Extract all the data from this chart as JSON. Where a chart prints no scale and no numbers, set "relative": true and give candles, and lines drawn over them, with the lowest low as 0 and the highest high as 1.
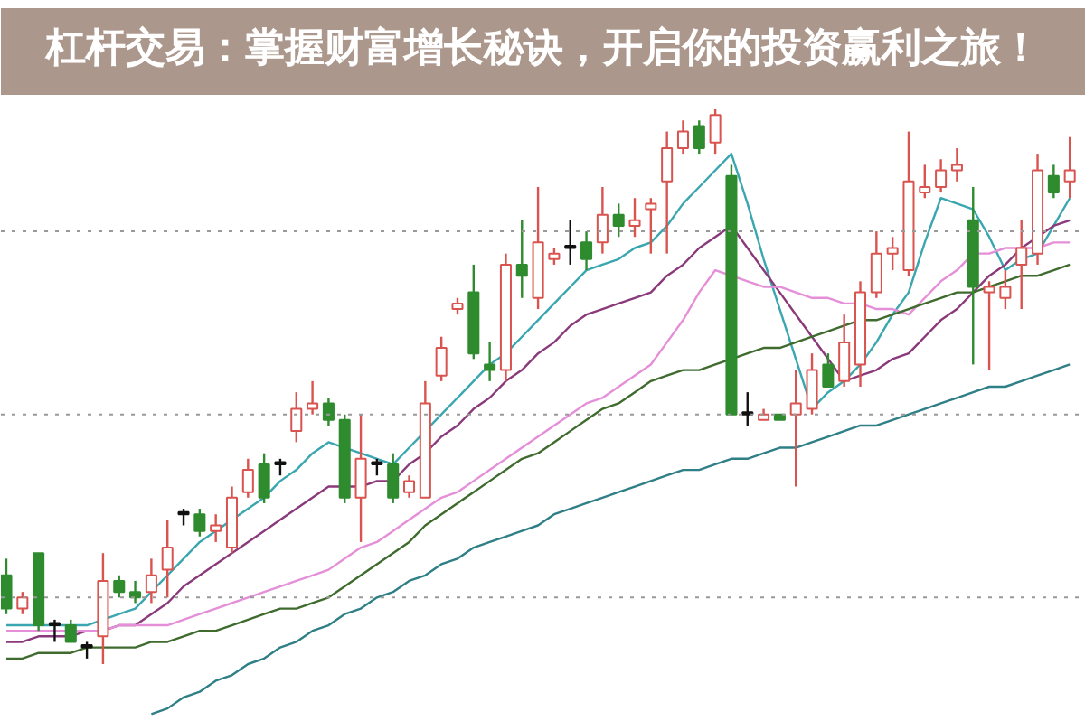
{
  "chart_data": {
    "type": "candlestick",
    "title": "杠杆交易：掌握财富增长秘诀，开启你的投资赢利之旅！",
    "relative": true,
    "categories": [
      null,
      null,
      null,
      null,
      null,
      null,
      null,
      null,
      null,
      null,
      null,
      null,
      null,
      null,
      null,
      null,
      null,
      null,
      null,
      null,
      null,
      null,
      null,
      null,
      null,
      null,
      null,
      null,
      null,
      null,
      null,
      null,
      null,
      null,
      null,
      null,
      null,
      null,
      null,
      null,
      null,
      null,
      null,
      null,
      null,
      null,
      null,
      null,
      null,
      null,
      null,
      null,
      null,
      null,
      null,
      null,
      null,
      null,
      null,
      null,
      null,
      null,
      null,
      null,
      null,
      null,
      null
    ],
    "ohlc": [
      [
        0.16,
        0.19,
        0.09,
        0.1
      ],
      [
        0.1,
        0.13,
        0.09,
        0.12
      ],
      [
        0.2,
        0.2,
        0.06,
        0.07
      ],
      [
        0.07,
        0.08,
        0.04,
        0.07
      ],
      [
        0.07,
        0.08,
        0.04,
        0.04
      ],
      [
        0.03,
        0.04,
        0.01,
        0.03
      ],
      [
        0.05,
        0.2,
        0,
        0.15
      ],
      [
        0.15,
        0.16,
        0.12,
        0.13
      ],
      [
        0.13,
        0.15,
        0.11,
        0.12
      ],
      [
        0.13,
        0.19,
        0.11,
        0.16
      ],
      [
        0.17,
        0.26,
        0.12,
        0.21
      ],
      [
        0.27,
        0.28,
        0.25,
        0.27
      ],
      [
        0.27,
        0.28,
        0.23,
        0.24
      ],
      [
        0.24,
        0.27,
        0.22,
        0.25
      ],
      [
        0.21,
        0.32,
        0.2,
        0.3
      ],
      [
        0.31,
        0.37,
        0.3,
        0.35
      ],
      [
        0.36,
        0.38,
        0.29,
        0.3
      ],
      [
        0.36,
        0.37,
        0.34,
        0.36
      ],
      [
        0.42,
        0.49,
        0.4,
        0.46
      ],
      [
        0.46,
        0.51,
        0.45,
        0.47
      ],
      [
        0.47,
        0.48,
        0.43,
        0.44
      ],
      [
        0.44,
        0.45,
        0.29,
        0.3
      ],
      [
        0.3,
        0.45,
        0.22,
        0.37
      ],
      [
        0.36,
        0.37,
        0.34,
        0.36
      ],
      [
        0.36,
        0.38,
        0.29,
        0.3
      ],
      [
        0.31,
        0.34,
        0.3,
        0.33
      ],
      [
        0.3,
        0.51,
        0.3,
        0.47
      ],
      [
        0.52,
        0.59,
        0.51,
        0.57
      ],
      [
        0.64,
        0.66,
        0.63,
        0.65
      ],
      [
        0.67,
        0.72,
        0.55,
        0.56
      ],
      [
        0.54,
        0.58,
        0.51,
        0.53
      ],
      [
        0.53,
        0.74,
        0.51,
        0.72
      ],
      [
        0.72,
        0.8,
        0.66,
        0.7
      ],
      [
        0.66,
        0.86,
        0.64,
        0.76
      ],
      [
        0.73,
        0.75,
        0.72,
        0.74
      ],
      [
        0.75,
        0.8,
        0.72,
        0.75
      ],
      [
        0.76,
        0.78,
        0.71,
        0.73
      ],
      [
        0.76,
        0.86,
        0.74,
        0.81
      ],
      [
        0.81,
        0.83,
        0.77,
        0.79
      ],
      [
        0.79,
        0.84,
        0.77,
        0.8
      ],
      [
        0.82,
        0.84,
        0.74,
        0.83
      ],
      [
        0.87,
        0.96,
        0.74,
        0.93
      ],
      [
        0.93,
        0.98,
        0.92,
        0.96
      ],
      [
        0.97,
        0.98,
        0.92,
        0.93
      ],
      [
        0.94,
        1.0,
        0.92,
        0.99
      ],
      [
        0.88,
        0.9,
        0.45,
        0.45
      ],
      [
        0.45,
        0.49,
        0.43,
        0.45
      ],
      [
        0.44,
        0.46,
        0.44,
        0.45
      ],
      [
        0.45,
        0.45,
        0.44,
        0.44
      ],
      [
        0.45,
        0.53,
        0.32,
        0.47
      ],
      [
        0.46,
        0.56,
        0.45,
        0.53
      ],
      [
        0.54,
        0.56,
        0.5,
        0.5
      ],
      [
        0.51,
        0.63,
        0.5,
        0.58
      ],
      [
        0.54,
        0.69,
        0.5,
        0.67
      ],
      [
        0.67,
        0.78,
        0.66,
        0.74
      ],
      [
        0.74,
        0.77,
        0.71,
        0.75
      ],
      [
        0.71,
        0.96,
        0.7,
        0.87
      ],
      [
        0.85,
        0.9,
        0.84,
        0.86
      ],
      [
        0.86,
        0.91,
        0.85,
        0.89
      ],
      [
        0.89,
        0.93,
        0.87,
        0.9
      ],
      [
        0.8,
        0.86,
        0.54,
        0.68
      ],
      [
        0.67,
        0.69,
        0.53,
        0.68
      ],
      [
        0.66,
        0.71,
        0.64,
        0.68
      ],
      [
        0.72,
        0.8,
        0.64,
        0.75
      ],
      [
        0.74,
        0.92,
        0.72,
        0.89
      ],
      [
        0.88,
        0.9,
        0.84,
        0.85
      ],
      [
        0.87,
        0.95,
        0.84,
        0.89
      ]
    ],
    "series": [
      {
        "type": "line",
        "color": "#3aa6b0",
        "values": [
          0.07,
          0.07,
          0.07,
          0.07,
          0.07,
          0.07,
          0.08,
          0.09,
          0.1,
          0.13,
          0.16,
          0.19,
          0.22,
          0.24,
          0.26,
          0.28,
          0.3,
          0.33,
          0.35,
          0.38,
          0.4,
          0.39,
          0.38,
          0.37,
          0.36,
          0.39,
          0.42,
          0.45,
          0.48,
          0.51,
          0.54,
          0.56,
          0.59,
          0.62,
          0.65,
          0.68,
          0.71,
          0.72,
          0.73,
          0.75,
          0.76,
          0.79,
          0.83,
          0.86,
          0.89,
          0.92,
          0.83,
          0.73,
          0.64,
          0.55,
          0.46,
          0.49,
          0.51,
          0.54,
          0.58,
          0.63,
          0.67,
          0.76,
          0.84,
          0.83,
          0.82,
          0.77,
          0.71,
          0.73,
          0.74,
          0.79,
          0.84
        ]
      },
      {
        "type": "line",
        "color": "#8a3a7a",
        "values": [
          0.04,
          0.04,
          0.05,
          0.05,
          0.05,
          0.06,
          0.06,
          0.07,
          0.07,
          0.09,
          0.11,
          0.14,
          0.16,
          0.18,
          0.2,
          0.22,
          0.24,
          0.26,
          0.28,
          0.3,
          0.32,
          0.32,
          0.32,
          0.33,
          0.33,
          0.36,
          0.38,
          0.41,
          0.43,
          0.46,
          0.48,
          0.51,
          0.53,
          0.56,
          0.58,
          0.61,
          0.63,
          0.64,
          0.65,
          0.66,
          0.67,
          0.7,
          0.72,
          0.75,
          0.77,
          0.79,
          0.75,
          0.71,
          0.67,
          0.63,
          0.59,
          0.55,
          0.51,
          0.52,
          0.53,
          0.55,
          0.56,
          0.59,
          0.62,
          0.64,
          0.67,
          0.7,
          0.72,
          0.75,
          0.77,
          0.79,
          0.8
        ]
      },
      {
        "type": "line",
        "color": "#e58fd8",
        "values": [
          0.06,
          0.06,
          0.06,
          0.06,
          0.06,
          0.06,
          0.06,
          0.07,
          0.07,
          0.07,
          0.07,
          0.08,
          0.09,
          0.1,
          0.11,
          0.12,
          0.13,
          0.14,
          0.15,
          0.16,
          0.17,
          0.19,
          0.21,
          0.22,
          0.24,
          0.26,
          0.28,
          0.3,
          0.31,
          0.33,
          0.35,
          0.37,
          0.39,
          0.41,
          0.43,
          0.45,
          0.47,
          0.48,
          0.5,
          0.52,
          0.54,
          0.58,
          0.62,
          0.67,
          0.71,
          0.7,
          0.69,
          0.68,
          0.68,
          0.67,
          0.66,
          0.66,
          0.65,
          0.65,
          0.64,
          0.64,
          0.63,
          0.66,
          0.69,
          0.71,
          0.74,
          0.74,
          0.75,
          0.75,
          0.75,
          0.76,
          0.76
        ]
      },
      {
        "type": "line",
        "color": "#3f6b2e",
        "values": [
          0.01,
          0.01,
          0.02,
          0.02,
          0.02,
          0.03,
          0.03,
          0.03,
          0.03,
          0.04,
          0.04,
          0.05,
          0.06,
          0.06,
          0.07,
          0.08,
          0.09,
          0.1,
          0.1,
          0.11,
          0.12,
          0.14,
          0.16,
          0.18,
          0.2,
          0.22,
          0.25,
          0.27,
          0.29,
          0.31,
          0.33,
          0.35,
          0.37,
          0.38,
          0.4,
          0.42,
          0.44,
          0.46,
          0.47,
          0.49,
          0.51,
          0.52,
          0.53,
          0.53,
          0.54,
          0.55,
          0.56,
          0.57,
          0.57,
          0.58,
          0.59,
          0.6,
          0.61,
          0.62,
          0.62,
          0.63,
          0.64,
          0.65,
          0.66,
          0.67,
          0.67,
          0.68,
          0.69,
          0.7,
          0.7,
          0.71,
          0.72
        ]
      },
      {
        "type": "line",
        "color": "#2f7f86",
        "values": [
          null,
          null,
          null,
          null,
          null,
          null,
          null,
          null,
          null,
          -0.09,
          -0.08,
          -0.06,
          -0.05,
          -0.03,
          -0.02,
          0.0,
          0.01,
          0.03,
          0.04,
          0.06,
          0.07,
          0.09,
          0.1,
          0.12,
          0.13,
          0.15,
          0.16,
          0.18,
          0.19,
          0.21,
          0.22,
          0.23,
          0.24,
          0.25,
          0.27,
          0.28,
          0.29,
          0.3,
          0.31,
          0.32,
          0.33,
          0.34,
          0.35,
          0.35,
          0.36,
          0.37,
          0.37,
          0.38,
          0.39,
          0.39,
          0.4,
          0.41,
          0.42,
          0.43,
          0.43,
          0.44,
          0.45,
          0.46,
          0.47,
          0.48,
          0.49,
          0.5,
          0.5,
          0.51,
          0.52,
          0.53,
          0.54
        ]
      }
    ],
    "ref_lines": [
      {
        "axis": "y",
        "value": 0.12,
        "color": "#999999",
        "line_style": "dotted"
      },
      {
        "axis": "y",
        "value": 0.45,
        "color": "#999999",
        "line_style": "dotted"
      },
      {
        "axis": "y",
        "value": 0.78,
        "color": "#999999",
        "line_style": "dotted"
      }
    ]
  }
}
